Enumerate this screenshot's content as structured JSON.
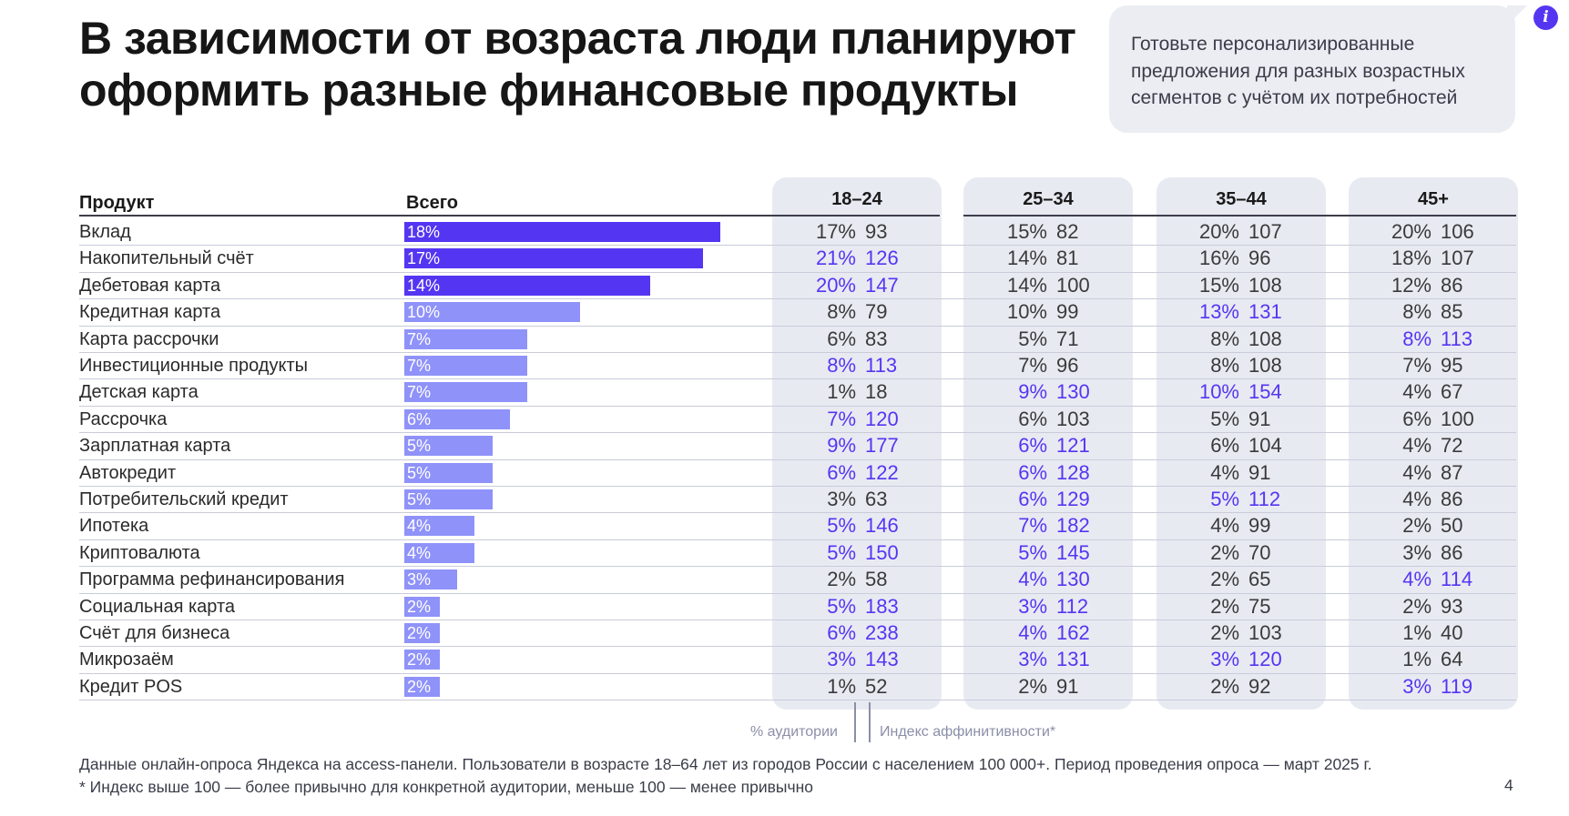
{
  "title": "В зависимости от возраста люди планируют оформить разные финансовые продукты",
  "callout": "Готовьте персонализированные предложения для разных возрастных сегментов с учётом их потребностей",
  "info_icon": "info-icon",
  "colors": {
    "bar_dark": "#5436f2",
    "bar_light": "#8f92f9",
    "highlight_text": "#5436f2",
    "column_bg": "#e8eaf2"
  },
  "legend": {
    "pct": "% аудитории",
    "idx": "Индекс аффинитивности*"
  },
  "footnote_1": "Данные онлайн-опроса Яндекса на access-панели. Пользователи в возрасте 18–64 лет из городов России с населением 100 000+. Период проведения опроса — март 2025 г.",
  "footnote_2": "* Индекс выше 100 — более привычно для конкретной аудитории, меньше 100 — менее привычно",
  "page_number": "4",
  "chart_data": {
    "type": "table",
    "headers": {
      "product": "Продукт",
      "total": "Всего",
      "groups": [
        "18–24",
        "25–34",
        "35–44",
        "45+"
      ]
    },
    "rows": [
      {
        "product": "Вклад",
        "total": 18,
        "total_label": "18%",
        "groups": [
          [
            "17%",
            93
          ],
          [
            "15%",
            82
          ],
          [
            "20%",
            107
          ],
          [
            "20%",
            106
          ]
        ]
      },
      {
        "product": "Накопительный счёт",
        "total": 17,
        "total_label": "17%",
        "groups": [
          [
            "21%",
            126
          ],
          [
            "14%",
            81
          ],
          [
            "16%",
            96
          ],
          [
            "18%",
            107
          ]
        ]
      },
      {
        "product": "Дебетовая карта",
        "total": 14,
        "total_label": "14%",
        "groups": [
          [
            "20%",
            147
          ],
          [
            "14%",
            100
          ],
          [
            "15%",
            108
          ],
          [
            "12%",
            86
          ]
        ]
      },
      {
        "product": "Кредитная карта",
        "total": 10,
        "total_label": "10%",
        "groups": [
          [
            "8%",
            79
          ],
          [
            "10%",
            99
          ],
          [
            "13%",
            131
          ],
          [
            "8%",
            85
          ]
        ]
      },
      {
        "product": "Карта рассрочки",
        "total": 7,
        "total_label": "7%",
        "groups": [
          [
            "6%",
            83
          ],
          [
            "5%",
            71
          ],
          [
            "8%",
            108
          ],
          [
            "8%",
            113
          ]
        ]
      },
      {
        "product": "Инвестиционные продукты",
        "total": 7,
        "total_label": "7%",
        "groups": [
          [
            "8%",
            113
          ],
          [
            "7%",
            96
          ],
          [
            "8%",
            108
          ],
          [
            "7%",
            95
          ]
        ]
      },
      {
        "product": "Детская карта",
        "total": 7,
        "total_label": "7%",
        "groups": [
          [
            "1%",
            18
          ],
          [
            "9%",
            130
          ],
          [
            "10%",
            154
          ],
          [
            "4%",
            67
          ]
        ]
      },
      {
        "product": "Рассрочка",
        "total": 6,
        "total_label": "6%",
        "groups": [
          [
            "7%",
            120
          ],
          [
            "6%",
            103
          ],
          [
            "5%",
            91
          ],
          [
            "6%",
            100
          ]
        ]
      },
      {
        "product": "Зарплатная карта",
        "total": 5,
        "total_label": "5%",
        "groups": [
          [
            "9%",
            177
          ],
          [
            "6%",
            121
          ],
          [
            "6%",
            104
          ],
          [
            "4%",
            72
          ]
        ]
      },
      {
        "product": "Автокредит",
        "total": 5,
        "total_label": "5%",
        "groups": [
          [
            "6%",
            122
          ],
          [
            "6%",
            128
          ],
          [
            "4%",
            91
          ],
          [
            "4%",
            87
          ]
        ]
      },
      {
        "product": "Потребительский кредит",
        "total": 5,
        "total_label": "5%",
        "groups": [
          [
            "3%",
            63
          ],
          [
            "6%",
            129
          ],
          [
            "5%",
            112
          ],
          [
            "4%",
            86
          ]
        ]
      },
      {
        "product": "Ипотека",
        "total": 4,
        "total_label": "4%",
        "groups": [
          [
            "5%",
            146
          ],
          [
            "7%",
            182
          ],
          [
            "4%",
            99
          ],
          [
            "2%",
            50
          ]
        ]
      },
      {
        "product": "Криптовалюта",
        "total": 4,
        "total_label": "4%",
        "groups": [
          [
            "5%",
            150
          ],
          [
            "5%",
            145
          ],
          [
            "2%",
            70
          ],
          [
            "3%",
            86
          ]
        ]
      },
      {
        "product": "Программа рефинансирования",
        "total": 3,
        "total_label": "3%",
        "groups": [
          [
            "2%",
            58
          ],
          [
            "4%",
            130
          ],
          [
            "2%",
            65
          ],
          [
            "4%",
            114
          ]
        ]
      },
      {
        "product": "Социальная карта",
        "total": 2,
        "total_label": "2%",
        "groups": [
          [
            "5%",
            183
          ],
          [
            "3%",
            112
          ],
          [
            "2%",
            75
          ],
          [
            "2%",
            93
          ]
        ]
      },
      {
        "product": "Счёт для бизнеса",
        "total": 2,
        "total_label": "2%",
        "groups": [
          [
            "6%",
            238
          ],
          [
            "4%",
            162
          ],
          [
            "2%",
            103
          ],
          [
            "1%",
            40
          ]
        ]
      },
      {
        "product": "Микрозаём",
        "total": 2,
        "total_label": "2%",
        "groups": [
          [
            "3%",
            143
          ],
          [
            "3%",
            131
          ],
          [
            "3%",
            120
          ],
          [
            "1%",
            64
          ]
        ]
      },
      {
        "product": "Кредит POS",
        "total": 2,
        "total_label": "2%",
        "groups": [
          [
            "1%",
            52
          ],
          [
            "2%",
            91
          ],
          [
            "2%",
            92
          ],
          [
            "3%",
            119
          ]
        ]
      }
    ],
    "highlight_rule": "index >= 110"
  }
}
